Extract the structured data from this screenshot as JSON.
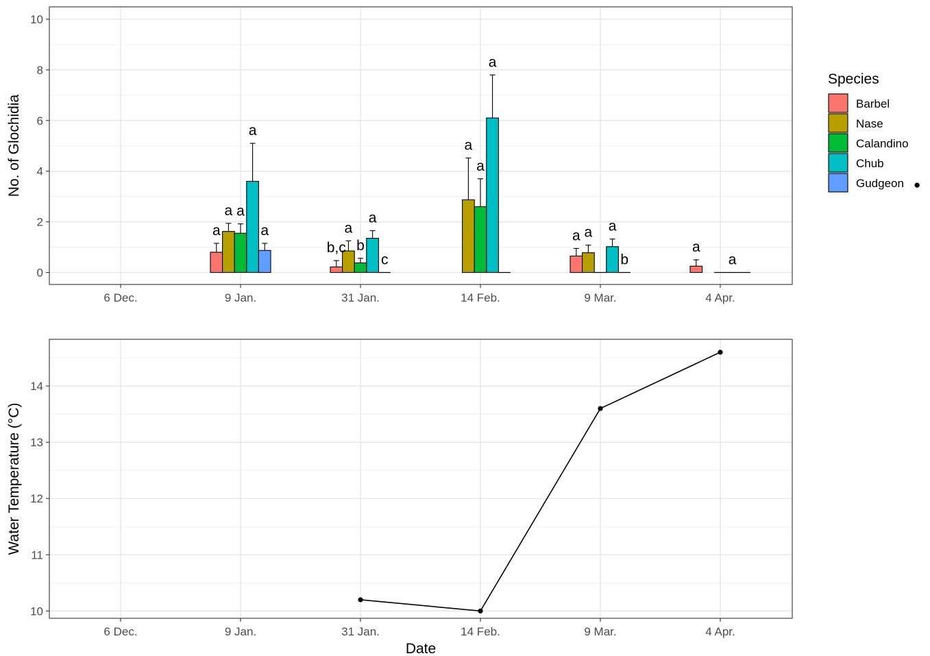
{
  "chart_data": [
    {
      "type": "bar",
      "ylabel": "No. of Glochidia",
      "xlabel": "",
      "ylim": [
        0,
        10
      ],
      "yticks": [
        0,
        2,
        4,
        6,
        8,
        10
      ],
      "grid": true,
      "categories": [
        "6 Dec.",
        "9 Jan.",
        "31 Jan.",
        "14 Feb.",
        "9 Mar.",
        "4 Apr."
      ],
      "legend": {
        "title": "Species",
        "position": "right",
        "extra_marker": "●"
      },
      "series": [
        {
          "name": "Barbel",
          "color": "#F8766D",
          "values": [
            null,
            0.8,
            0.22,
            null,
            0.65,
            0.25
          ],
          "error": [
            null,
            0.35,
            0.25,
            null,
            0.3,
            0.25
          ],
          "labels": [
            "",
            "a",
            "b,c",
            "",
            "a",
            "a"
          ]
        },
        {
          "name": "Nase",
          "color": "#B79F00",
          "values": [
            null,
            1.62,
            0.85,
            2.87,
            0.78,
            null
          ],
          "error": [
            null,
            0.32,
            0.4,
            1.65,
            0.3,
            null
          ],
          "labels": [
            "",
            "a",
            "a",
            "a",
            "a",
            ""
          ]
        },
        {
          "name": "Calandino",
          "color": "#00BA38",
          "values": [
            null,
            1.55,
            0.38,
            2.6,
            0,
            0
          ],
          "error": [
            null,
            0.37,
            0.18,
            1.1,
            null,
            null
          ],
          "labels": [
            "",
            "a",
            "b",
            "a",
            "",
            ""
          ]
        },
        {
          "name": "Chub",
          "color": "#00BFC4",
          "values": [
            null,
            3.6,
            1.35,
            6.1,
            1.02,
            0
          ],
          "error": [
            null,
            1.5,
            0.3,
            1.7,
            0.3,
            null
          ],
          "labels": [
            "",
            "a",
            "a",
            "a",
            "a",
            "a"
          ]
        },
        {
          "name": "Gudgeon",
          "color": "#619CFF",
          "values": [
            null,
            0.87,
            0,
            0,
            0,
            0
          ],
          "error": [
            null,
            0.28,
            null,
            null,
            null,
            null
          ],
          "labels": [
            "",
            "a",
            "c",
            "",
            "b",
            ""
          ]
        }
      ]
    },
    {
      "type": "line",
      "ylabel": "Water Temperature (°C)",
      "xlabel": "Date",
      "ylim": [
        9.87,
        14.83
      ],
      "yticks": [
        10,
        11,
        12,
        13,
        14
      ],
      "grid": true,
      "categories": [
        "6 Dec.",
        "9 Jan.",
        "31 Jan.",
        "14 Feb.",
        "9 Mar.",
        "4 Apr."
      ],
      "series": [
        {
          "name": "",
          "color": "#000000",
          "values": [
            null,
            null,
            10.2,
            10.0,
            13.6,
            14.6
          ]
        }
      ]
    }
  ]
}
